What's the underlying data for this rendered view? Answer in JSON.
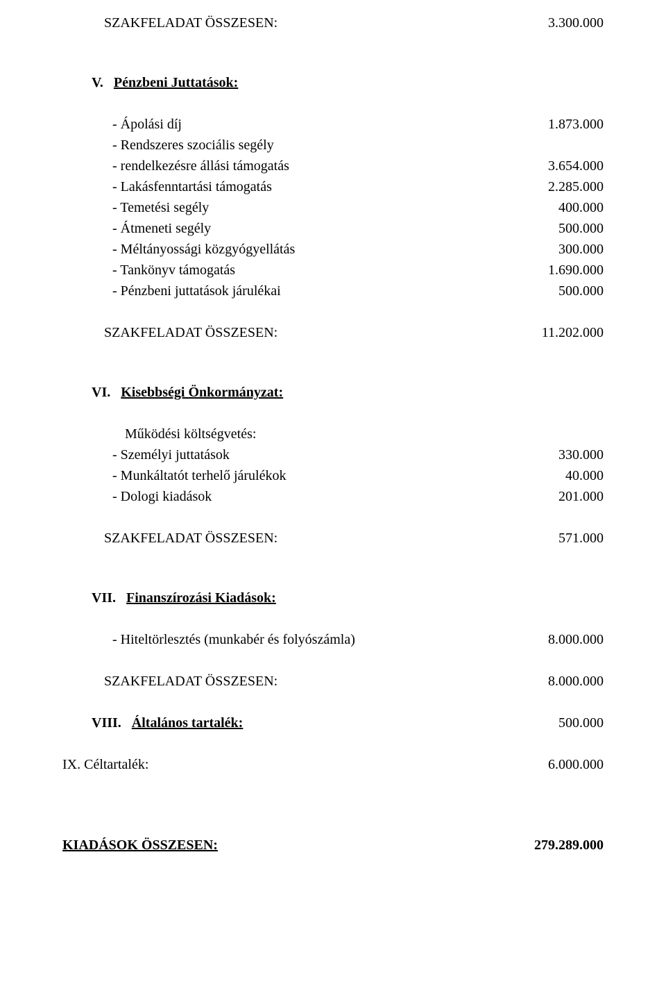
{
  "colors": {
    "text": "#000000",
    "background": "#ffffff"
  },
  "font": {
    "family": "Times New Roman",
    "size_pt": 15
  },
  "sf_total_head": {
    "label": "SZAKFELADAT ÖSSZESEN:",
    "value": "3.300.000"
  },
  "sec_v": {
    "num": "V.",
    "title": "Pénzbeni Juttatások:"
  },
  "v_items": [
    {
      "label": "- Ápolási díj",
      "value": "1.873.000"
    },
    {
      "label": "- Rendszeres szociális segély",
      "value": ""
    },
    {
      "label": "- rendelkezésre állási támogatás",
      "value": "3.654.000"
    },
    {
      "label": "- Lakásfenntartási támogatás",
      "value": "2.285.000"
    },
    {
      "label": "- Temetési segély",
      "value": "400.000"
    },
    {
      "label": "- Átmeneti segély",
      "value": "500.000"
    },
    {
      "label": "- Méltányossági közgyógyellátás",
      "value": "300.000"
    },
    {
      "label": "- Tankönyv támogatás",
      "value": "1.690.000"
    },
    {
      "label": "- Pénzbeni juttatások járulékai",
      "value": "500.000"
    }
  ],
  "v_total": {
    "label": "SZAKFELADAT ÖSSZESEN:",
    "value": "11.202.000"
  },
  "sec_vi": {
    "num": "VI.",
    "title": "Kisebbségi Önkormányzat:"
  },
  "vi_sub": "Működési költségvetés:",
  "vi_items": [
    {
      "label": "- Személyi juttatások",
      "value": "330.000"
    },
    {
      "label": "- Munkáltatót terhelő járulékok",
      "value": "40.000"
    },
    {
      "label": "- Dologi kiadások",
      "value": "201.000"
    }
  ],
  "vi_total": {
    "label": "SZAKFELADAT ÖSSZESEN:",
    "value": "571.000"
  },
  "sec_vii": {
    "num": "VII.",
    "title": "Finanszírozási Kiadások:"
  },
  "vii_items": [
    {
      "label": "- Hiteltörlesztés (munkabér és folyószámla)",
      "value": "8.000.000"
    }
  ],
  "vii_total": {
    "label": "SZAKFELADAT ÖSSZESEN:",
    "value": "8.000.000"
  },
  "sec_viii": {
    "num": "VIII.",
    "title": "Általános tartalék:",
    "value": "500.000"
  },
  "sec_ix": {
    "label": "IX. Céltartalék:",
    "value": "6.000.000"
  },
  "grand_total": {
    "label": "KIADÁSOK ÖSSZESEN:",
    "value": "279.289.000"
  }
}
